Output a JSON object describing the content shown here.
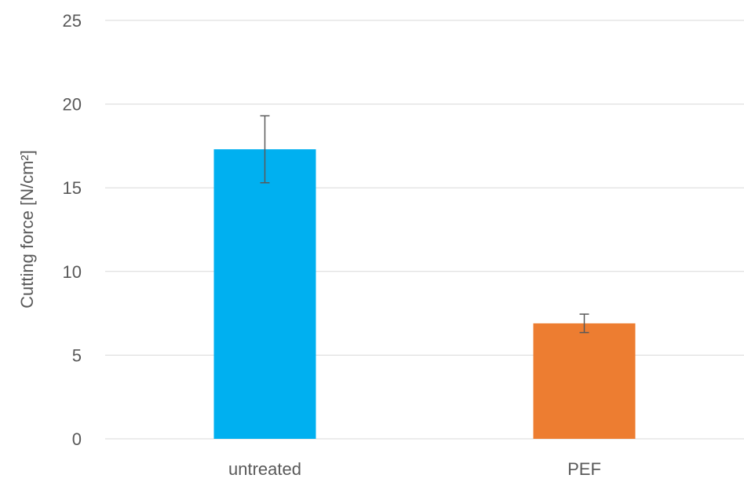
{
  "chart_data": {
    "type": "bar",
    "title": "",
    "xlabel": "",
    "ylabel": "Cutting force [N/cm²]",
    "ylim": [
      0,
      25
    ],
    "yticks": [
      0,
      5,
      10,
      15,
      20,
      25
    ],
    "grid": true,
    "legend": "none",
    "categories": [
      "untreated",
      "PEF"
    ],
    "values": [
      17.3,
      6.9
    ],
    "errors": [
      2.0,
      0.55
    ],
    "colors": [
      "#00b0f0",
      "#ed7d31"
    ]
  }
}
